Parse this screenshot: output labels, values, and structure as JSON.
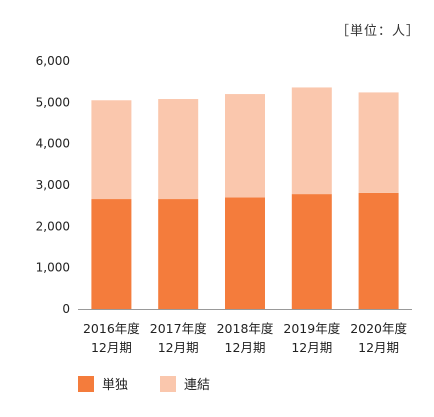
{
  "unit_label": "［単位：人］",
  "chart_data": {
    "type": "bar",
    "stacked": true,
    "categories": [
      [
        "2016年度",
        "12月期"
      ],
      [
        "2017年度",
        "12月期"
      ],
      [
        "2018年度",
        "12月期"
      ],
      [
        "2019年度",
        "12月期"
      ],
      [
        "2020年度",
        "12月期"
      ]
    ],
    "series": [
      {
        "name": "単独",
        "color": "#f47c3c",
        "values": [
          2660,
          2660,
          2700,
          2780,
          2810
        ]
      },
      {
        "name": "連結",
        "color": "#fac7ad",
        "values": [
          2390,
          2420,
          2500,
          2580,
          2430
        ]
      }
    ],
    "ylim": [
      0,
      6000
    ],
    "yticks": [
      "0",
      "1,000",
      "2,000",
      "3,000",
      "4,000",
      "5,000",
      "6,000"
    ],
    "grid": false,
    "legend": "bottom-left"
  }
}
